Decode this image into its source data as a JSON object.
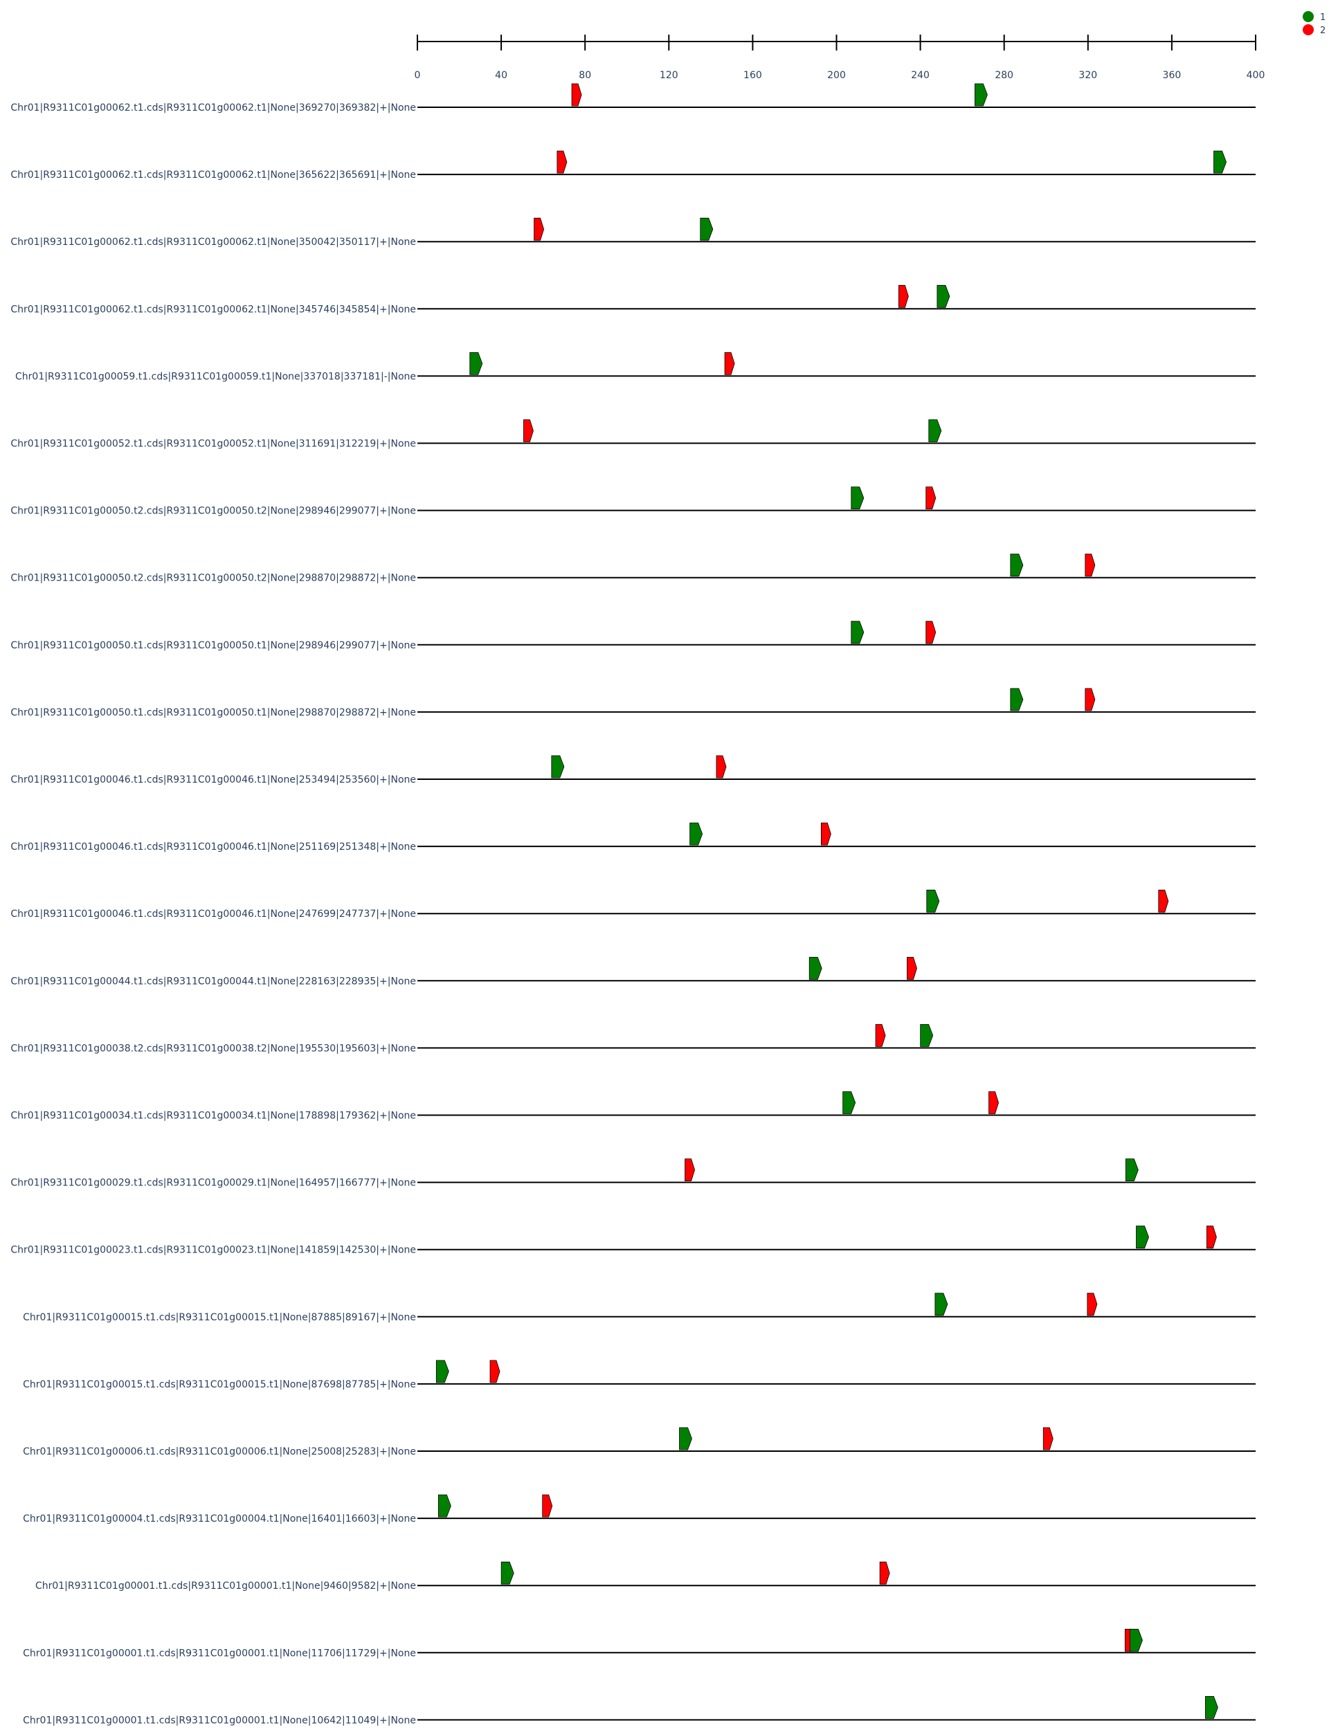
{
  "chart_data": {
    "type": "motif-position",
    "xlim": [
      0,
      400
    ],
    "ticks": [
      0,
      40,
      80,
      120,
      160,
      200,
      240,
      280,
      320,
      360,
      400
    ],
    "legend": [
      {
        "name": "1",
        "color": "#008000"
      },
      {
        "name": "2",
        "color": "#ff0000"
      }
    ],
    "legend_position": "top-right",
    "rows": [
      {
        "label": "Chr01|R9311C01g00062.t1.cds|R9311C01g00062.t1|None|369270|369382|+|None",
        "motifs": [
          {
            "m": 2,
            "x": 76
          },
          {
            "m": 1,
            "x": 269
          }
        ]
      },
      {
        "label": "Chr01|R9311C01g00062.t1.cds|R9311C01g00062.t1|None|365622|365691|+|None",
        "motifs": [
          {
            "m": 2,
            "x": 69
          },
          {
            "m": 1,
            "x": 383
          }
        ]
      },
      {
        "label": "Chr01|R9311C01g00062.t1.cds|R9311C01g00062.t1|None|350042|350117|+|None",
        "motifs": [
          {
            "m": 2,
            "x": 58
          },
          {
            "m": 1,
            "x": 138
          }
        ]
      },
      {
        "label": "Chr01|R9311C01g00062.t1.cds|R9311C01g00062.t1|None|345746|345854|+|None",
        "motifs": [
          {
            "m": 2,
            "x": 232
          },
          {
            "m": 1,
            "x": 251
          }
        ]
      },
      {
        "label": "Chr01|R9311C01g00059.t1.cds|R9311C01g00059.t1|None|337018|337181|-|None",
        "motifs": [
          {
            "m": 1,
            "x": 28
          },
          {
            "m": 2,
            "x": 149
          }
        ]
      },
      {
        "label": "Chr01|R9311C01g00052.t1.cds|R9311C01g00052.t1|None|311691|312219|+|None",
        "motifs": [
          {
            "m": 2,
            "x": 53
          },
          {
            "m": 1,
            "x": 247
          }
        ]
      },
      {
        "label": "Chr01|R9311C01g00050.t2.cds|R9311C01g00050.t2|None|298946|299077|+|None",
        "motifs": [
          {
            "m": 1,
            "x": 210
          },
          {
            "m": 2,
            "x": 245
          }
        ]
      },
      {
        "label": "Chr01|R9311C01g00050.t2.cds|R9311C01g00050.t2|None|298870|298872|+|None",
        "motifs": [
          {
            "m": 1,
            "x": 286
          },
          {
            "m": 2,
            "x": 321
          }
        ]
      },
      {
        "label": "Chr01|R9311C01g00050.t1.cds|R9311C01g00050.t1|None|298946|299077|+|None",
        "motifs": [
          {
            "m": 1,
            "x": 210
          },
          {
            "m": 2,
            "x": 245
          }
        ]
      },
      {
        "label": "Chr01|R9311C01g00050.t1.cds|R9311C01g00050.t1|None|298870|298872|+|None",
        "motifs": [
          {
            "m": 1,
            "x": 286
          },
          {
            "m": 2,
            "x": 321
          }
        ]
      },
      {
        "label": "Chr01|R9311C01g00046.t1.cds|R9311C01g00046.t1|None|253494|253560|+|None",
        "motifs": [
          {
            "m": 1,
            "x": 67
          },
          {
            "m": 2,
            "x": 145
          }
        ]
      },
      {
        "label": "Chr01|R9311C01g00046.t1.cds|R9311C01g00046.t1|None|251169|251348|+|None",
        "motifs": [
          {
            "m": 1,
            "x": 133
          },
          {
            "m": 2,
            "x": 195
          }
        ]
      },
      {
        "label": "Chr01|R9311C01g00046.t1.cds|R9311C01g00046.t1|None|247699|247737|+|None",
        "motifs": [
          {
            "m": 1,
            "x": 246
          },
          {
            "m": 2,
            "x": 356
          }
        ]
      },
      {
        "label": "Chr01|R9311C01g00044.t1.cds|R9311C01g00044.t1|None|228163|228935|+|None",
        "motifs": [
          {
            "m": 1,
            "x": 190
          },
          {
            "m": 2,
            "x": 236
          }
        ]
      },
      {
        "label": "Chr01|R9311C01g00038.t2.cds|R9311C01g00038.t2|None|195530|195603|+|None",
        "motifs": [
          {
            "m": 2,
            "x": 221
          },
          {
            "m": 1,
            "x": 243
          }
        ]
      },
      {
        "label": "Chr01|R9311C01g00034.t1.cds|R9311C01g00034.t1|None|178898|179362|+|None",
        "motifs": [
          {
            "m": 1,
            "x": 206
          },
          {
            "m": 2,
            "x": 275
          }
        ]
      },
      {
        "label": "Chr01|R9311C01g00029.t1.cds|R9311C01g00029.t1|None|164957|166777|+|None",
        "motifs": [
          {
            "m": 2,
            "x": 130
          },
          {
            "m": 1,
            "x": 341
          }
        ]
      },
      {
        "label": "Chr01|R9311C01g00023.t1.cds|R9311C01g00023.t1|None|141859|142530|+|None",
        "motifs": [
          {
            "m": 1,
            "x": 346
          },
          {
            "m": 2,
            "x": 379
          }
        ]
      },
      {
        "label": "Chr01|R9311C01g00015.t1.cds|R9311C01g00015.t1|None|87885|89167|+|None",
        "motifs": [
          {
            "m": 1,
            "x": 250
          },
          {
            "m": 2,
            "x": 322
          }
        ]
      },
      {
        "label": "Chr01|R9311C01g00015.t1.cds|R9311C01g00015.t1|None|87698|87785|+|None",
        "motifs": [
          {
            "m": 1,
            "x": 12
          },
          {
            "m": 2,
            "x": 37
          }
        ]
      },
      {
        "label": "Chr01|R9311C01g00006.t1.cds|R9311C01g00006.t1|None|25008|25283|+|None",
        "motifs": [
          {
            "m": 1,
            "x": 128
          },
          {
            "m": 2,
            "x": 301
          }
        ]
      },
      {
        "label": "Chr01|R9311C01g00004.t1.cds|R9311C01g00004.t1|None|16401|16603|+|None",
        "motifs": [
          {
            "m": 1,
            "x": 13
          },
          {
            "m": 2,
            "x": 62
          }
        ]
      },
      {
        "label": "Chr01|R9311C01g00001.t1.cds|R9311C01g00001.t1|None|9460|9582|+|None",
        "motifs": [
          {
            "m": 1,
            "x": 43
          },
          {
            "m": 2,
            "x": 223
          }
        ]
      },
      {
        "label": "Chr01|R9311C01g00001.t1.cds|R9311C01g00001.t1|None|11706|11729|+|None",
        "motifs": [
          {
            "m": 2,
            "x": 340
          },
          {
            "m": 1,
            "x": 343
          }
        ]
      },
      {
        "label": "Chr01|R9311C01g00001.t1.cds|R9311C01g00001.t1|None|10642|11049|+|None",
        "motifs": [
          {
            "m": 1,
            "x": 379
          }
        ]
      }
    ]
  }
}
